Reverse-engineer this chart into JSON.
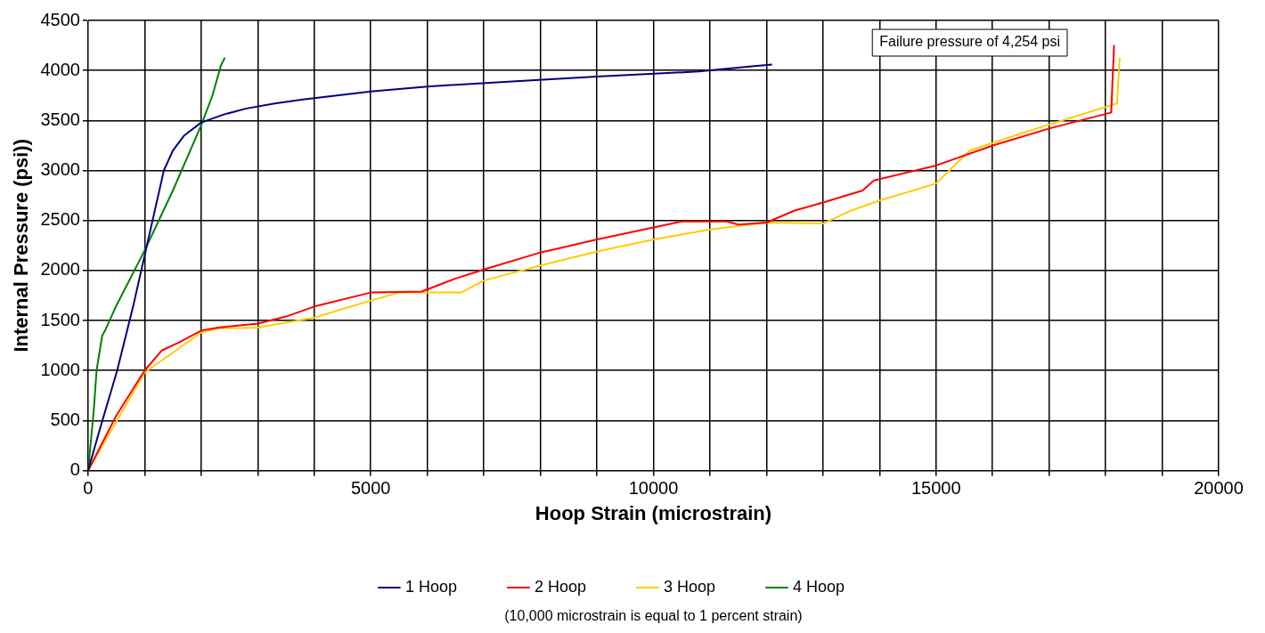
{
  "chart_data": {
    "type": "line",
    "xlabel": "Hoop Strain (microstrain)",
    "ylabel": "Internal Pressure (psi))",
    "annotations": [
      "Failure pressure of 4,254 psi",
      "(10,000 microstrain is equal to 1 percent strain)"
    ],
    "xlim": [
      0,
      20000
    ],
    "ylim": [
      0,
      4500
    ],
    "xticks": [
      0,
      {
        "value": 1000,
        "label": null
      },
      {
        "value": 2000,
        "label": null
      },
      {
        "value": 3000,
        "label": null
      },
      {
        "value": 4000,
        "label": null
      },
      5000,
      {
        "value": 6000,
        "label": null
      },
      {
        "value": 7000,
        "label": null
      },
      {
        "value": 8000,
        "label": null
      },
      {
        "value": 9000,
        "label": null
      },
      10000,
      {
        "value": 11000,
        "label": null
      },
      {
        "value": 12000,
        "label": null
      },
      {
        "value": 13000,
        "label": null
      },
      {
        "value": 14000,
        "label": null
      },
      15000,
      {
        "value": 16000,
        "label": null
      },
      {
        "value": 17000,
        "label": null
      },
      {
        "value": 18000,
        "label": null
      },
      {
        "value": 19000,
        "label": null
      },
      20000
    ],
    "yticks": [
      0,
      500,
      1000,
      1500,
      2000,
      2500,
      3000,
      3500,
      4000,
      4500
    ],
    "grid": true,
    "legend": "bottom",
    "marker": "none",
    "line_style": "solid",
    "series": [
      {
        "name": "1 Hoop",
        "color": "#000080",
        "x": [
          0,
          200,
          514,
          800,
          1000,
          1200,
          1340,
          1500,
          1700,
          2000,
          2400,
          2800,
          3300,
          3800,
          4400,
          5000,
          6000,
          7500,
          9000,
          10800,
          11700,
          12100
        ],
        "values": [
          0,
          400,
          1000,
          1650,
          2150,
          2650,
          3000,
          3200,
          3350,
          3480,
          3560,
          3620,
          3670,
          3710,
          3750,
          3790,
          3840,
          3890,
          3940,
          3990,
          4040,
          4060
        ]
      },
      {
        "name": "2 Hoop",
        "color": "#ff0000",
        "x": [
          0,
          500,
          1000,
          1300,
          1600,
          2000,
          2300,
          3000,
          3500,
          4000,
          5000,
          5900,
          6500,
          7000,
          8000,
          9000,
          10000,
          10500,
          11300,
          11500,
          12000,
          12500,
          13000,
          13700,
          13900,
          15000,
          16000,
          17000,
          18100,
          18100,
          18150
        ],
        "values": [
          0,
          550,
          1000,
          1200,
          1280,
          1400,
          1430,
          1470,
          1540,
          1640,
          1780,
          1790,
          1920,
          2010,
          2180,
          2310,
          2430,
          2490,
          2490,
          2460,
          2480,
          2600,
          2680,
          2800,
          2900,
          3050,
          3250,
          3420,
          3580,
          3600,
          4254
        ]
      },
      {
        "name": "3 Hoop",
        "color": "#ffcc00",
        "x": [
          0,
          1000,
          2000,
          2300,
          3000,
          4000,
          5000,
          5500,
          6600,
          7000,
          8000,
          9000,
          10000,
          11000,
          12000,
          13000,
          13500,
          14000,
          15000,
          15600,
          16500,
          17000,
          18200,
          18250
        ],
        "values": [
          0,
          980,
          1380,
          1420,
          1430,
          1530,
          1700,
          1780,
          1780,
          1900,
          2050,
          2190,
          2310,
          2410,
          2480,
          2470,
          2600,
          2700,
          2870,
          3200,
          3370,
          3460,
          3670,
          4130
        ]
      },
      {
        "name": "4 Hoop",
        "color": "#008000",
        "x": [
          0,
          100,
          150,
          250,
          300,
          500,
          1000,
          1500,
          2000,
          2200,
          2350,
          2420
        ],
        "values": [
          0,
          600,
          1000,
          1350,
          1400,
          1650,
          2200,
          2800,
          3450,
          3750,
          4050,
          4130
        ]
      }
    ]
  }
}
